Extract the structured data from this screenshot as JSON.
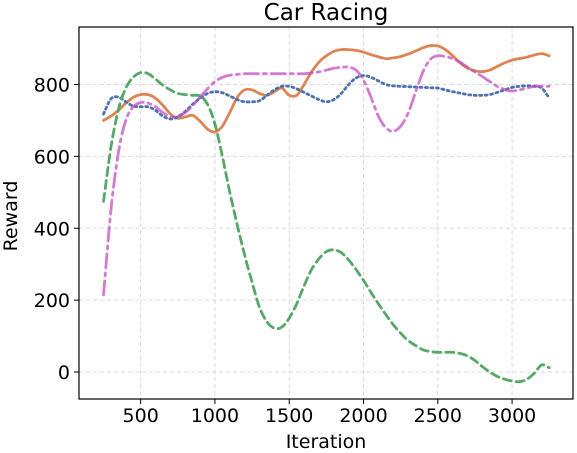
{
  "chart_data": {
    "type": "line",
    "title": "Car Racing",
    "xlabel": "Iteration",
    "ylabel": "Reward",
    "xlim": [
      85,
      3410
    ],
    "ylim": [
      -75,
      960
    ],
    "xticks": [
      500,
      1000,
      1500,
      2000,
      2500,
      3000
    ],
    "yticks": [
      0,
      200,
      400,
      600,
      800
    ],
    "grid": true,
    "legend": "none",
    "series": [
      {
        "color": "#dd8452",
        "style": "solid",
        "x": [
          250,
          300,
          350,
          400,
          450,
          500,
          550,
          600,
          650,
          700,
          750,
          800,
          850,
          900,
          950,
          1000,
          1050,
          1100,
          1150,
          1200,
          1250,
          1300,
          1350,
          1400,
          1450,
          1500,
          1550,
          1600,
          1650,
          1700,
          1750,
          1800,
          1850,
          1900,
          1950,
          2000,
          2050,
          2100,
          2150,
          2200,
          2250,
          2300,
          2350,
          2400,
          2450,
          2500,
          2550,
          2600,
          2650,
          2700,
          2750,
          2800,
          2850,
          2900,
          2950,
          3000,
          3050,
          3100,
          3150,
          3200,
          3250
        ],
        "y": [
          700,
          712,
          728,
          748,
          764,
          772,
          772,
          762,
          742,
          718,
          706,
          710,
          714,
          698,
          676,
          668,
          684,
          722,
          764,
          785,
          785,
          775,
          770,
          780,
          790,
          770,
          770,
          800,
          835,
          862,
          880,
          892,
          897,
          897,
          895,
          890,
          883,
          877,
          872,
          874,
          878,
          885,
          893,
          902,
          908,
          907,
          897,
          880,
          860,
          846,
          838,
          836,
          840,
          850,
          860,
          868,
          872,
          876,
          882,
          886,
          880
        ]
      },
      {
        "color": "#4c72b0",
        "style": "dotted",
        "x": [
          250,
          300,
          350,
          400,
          450,
          500,
          550,
          600,
          650,
          700,
          750,
          800,
          850,
          900,
          950,
          1000,
          1050,
          1100,
          1150,
          1200,
          1250,
          1300,
          1350,
          1400,
          1450,
          1500,
          1550,
          1600,
          1650,
          1700,
          1750,
          1800,
          1850,
          1900,
          1950,
          2000,
          2050,
          2100,
          2150,
          2200,
          2250,
          2300,
          2350,
          2400,
          2450,
          2500,
          2550,
          2600,
          2650,
          2700,
          2750,
          2800,
          2850,
          2900,
          2950,
          3000,
          3050,
          3100,
          3150,
          3200,
          3250
        ],
        "y": [
          718,
          760,
          765,
          752,
          740,
          738,
          738,
          728,
          712,
          704,
          710,
          725,
          745,
          762,
          775,
          780,
          777,
          768,
          758,
          752,
          752,
          755,
          770,
          785,
          795,
          795,
          788,
          778,
          768,
          758,
          752,
          758,
          775,
          800,
          818,
          825,
          820,
          810,
          800,
          796,
          795,
          794,
          793,
          792,
          791,
          790,
          785,
          780,
          776,
          772,
          770,
          770,
          772,
          778,
          785,
          792,
          795,
          796,
          795,
          790,
          762
        ]
      },
      {
        "color": "#55a868",
        "style": "dashed",
        "x": [
          250,
          300,
          350,
          400,
          450,
          500,
          550,
          600,
          650,
          700,
          750,
          800,
          850,
          900,
          950,
          1000,
          1050,
          1100,
          1150,
          1200,
          1250,
          1300,
          1350,
          1400,
          1450,
          1500,
          1550,
          1600,
          1650,
          1700,
          1750,
          1800,
          1850,
          1900,
          1950,
          2000,
          2050,
          2100,
          2150,
          2200,
          2250,
          2300,
          2350,
          2400,
          2450,
          2500,
          2550,
          2600,
          2650,
          2700,
          2750,
          2800,
          2850,
          2900,
          2950,
          3000,
          3050,
          3100,
          3150,
          3200,
          3250
        ],
        "y": [
          475,
          625,
          730,
          790,
          820,
          833,
          830,
          815,
          798,
          785,
          775,
          772,
          770,
          768,
          745,
          690,
          600,
          500,
          410,
          325,
          250,
          180,
          140,
          122,
          125,
          150,
          190,
          240,
          285,
          315,
          335,
          340,
          332,
          312,
          285,
          255,
          222,
          190,
          160,
          132,
          108,
          88,
          74,
          62,
          57,
          55,
          55,
          55,
          52,
          45,
          32,
          15,
          0,
          -12,
          -20,
          -25,
          -27,
          -20,
          -3,
          20,
          12
        ]
      },
      {
        "color": "#c44ec4",
        "alpha": 0.75,
        "style": "dashdot",
        "x": [
          250,
          300,
          350,
          400,
          450,
          500,
          550,
          600,
          650,
          700,
          750,
          800,
          850,
          900,
          950,
          1000,
          1050,
          1100,
          1150,
          1200,
          1250,
          1300,
          1350,
          1400,
          1450,
          1500,
          1550,
          1600,
          1650,
          1700,
          1750,
          1800,
          1850,
          1900,
          1950,
          2000,
          2050,
          2100,
          2150,
          2200,
          2250,
          2300,
          2350,
          2400,
          2450,
          2500,
          2550,
          2600,
          2650,
          2700,
          2750,
          2800,
          2850,
          2900,
          2950,
          3000,
          3050,
          3100,
          3150,
          3200,
          3250
        ],
        "y": [
          215,
          450,
          610,
          700,
          738,
          750,
          748,
          738,
          722,
          710,
          712,
          722,
          742,
          765,
          788,
          808,
          820,
          826,
          828,
          830,
          830,
          830,
          830,
          830,
          830,
          830,
          830,
          830,
          832,
          835,
          840,
          845,
          848,
          848,
          840,
          812,
          765,
          712,
          680,
          670,
          684,
          720,
          778,
          835,
          870,
          880,
          878,
          872,
          862,
          848,
          835,
          822,
          808,
          795,
          786,
          782,
          785,
          790,
          795,
          795,
          795
        ]
      }
    ]
  }
}
